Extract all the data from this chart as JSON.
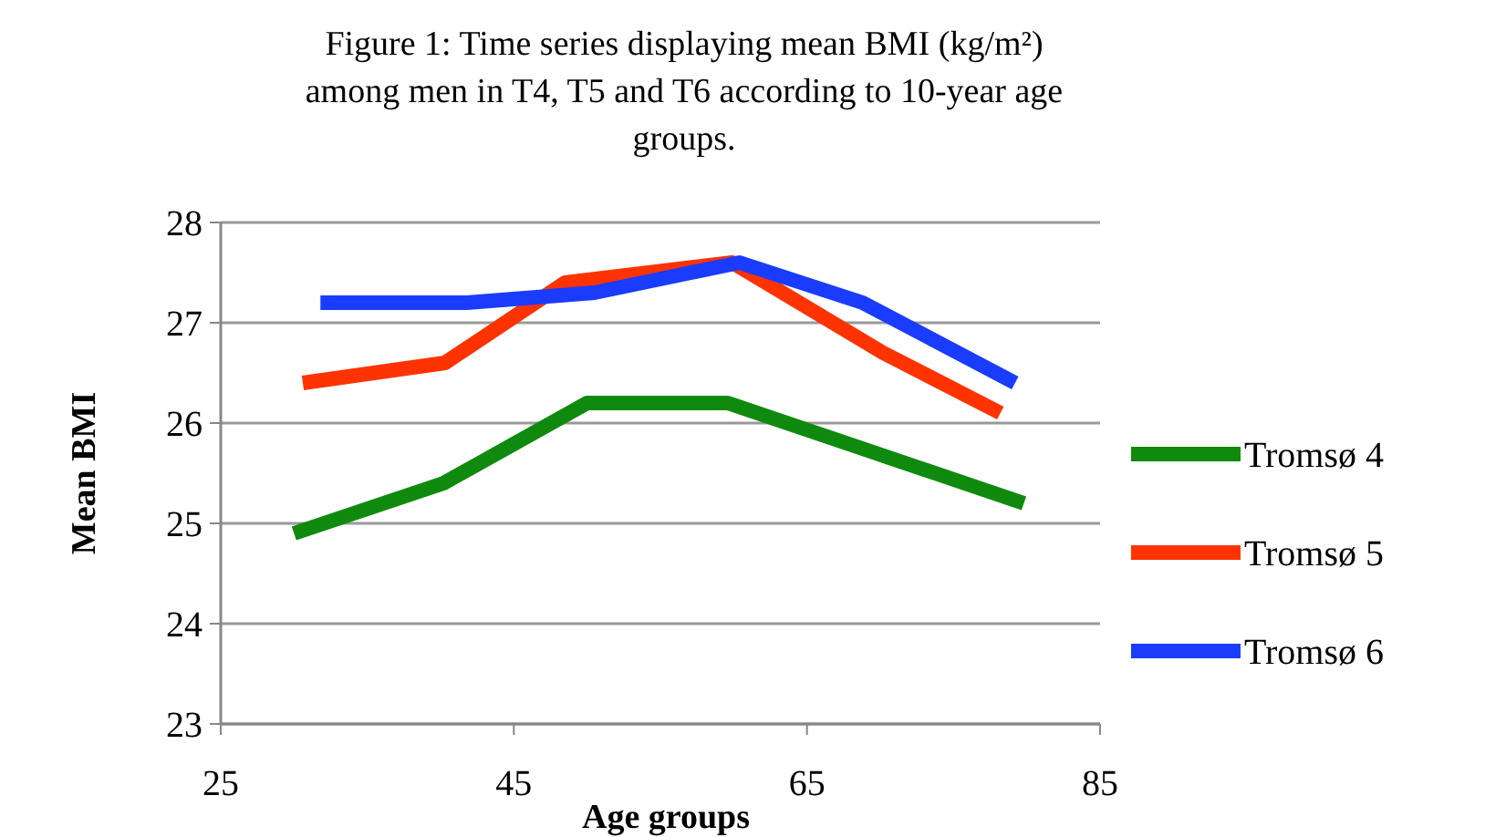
{
  "chart_data": {
    "type": "line",
    "title": "Figure 1: Time series displaying mean BMI (kg/m²) among men in T4, T5 and T6 according to 10-year age groups.",
    "xlabel": "Age groups",
    "ylabel": "Mean BMI",
    "xlim": [
      25,
      85
    ],
    "xticks": [
      25,
      45,
      65,
      85
    ],
    "ylim": [
      23,
      28
    ],
    "yticks": [
      23,
      24,
      25,
      26,
      27,
      28
    ],
    "grid": "y",
    "legend": "right",
    "line_style": "solid",
    "marker": "none",
    "series": [
      {
        "name": "Tromsø 4",
        "color": "#0f8a0f",
        "x": [
          30,
          40.2,
          50,
          59.6,
          69.7,
          79.8
        ],
        "values": [
          24.9,
          25.4,
          26.2,
          26.2,
          25.7,
          25.2
        ]
      },
      {
        "name": "Tromsø 5",
        "color": "#ff3300",
        "x": [
          30.6,
          40.3,
          48.5,
          59.9,
          70.2,
          78.2
        ],
        "values": [
          26.4,
          26.6,
          27.4,
          27.6,
          26.7,
          26.1
        ]
      },
      {
        "name": "Tromsø 6",
        "color": "#1a3cff",
        "x": [
          31.8,
          41.8,
          50.5,
          60.4,
          68.8,
          79.2
        ],
        "values": [
          27.2,
          27.2,
          27.3,
          27.6,
          27.2,
          26.4
        ]
      }
    ]
  }
}
